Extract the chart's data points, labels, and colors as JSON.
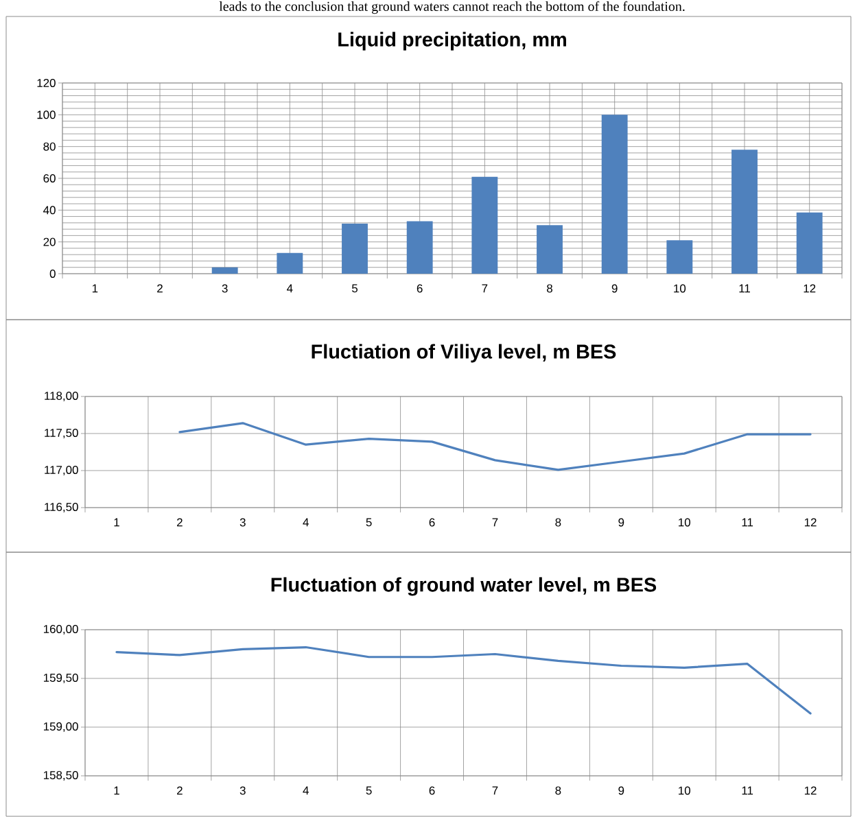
{
  "chart_data": [
    {
      "type": "bar",
      "title": "Liquid precipitation, mm",
      "categories": [
        "1",
        "2",
        "3",
        "4",
        "5",
        "6",
        "7",
        "8",
        "9",
        "10",
        "11",
        "12"
      ],
      "values": [
        0,
        0,
        4,
        13,
        31.5,
        33,
        61,
        30.5,
        100,
        21,
        78,
        38.5
      ],
      "color": "#4f81bd",
      "ylim": [
        0,
        120
      ],
      "yticks": [
        0,
        20,
        40,
        60,
        80,
        100,
        120
      ],
      "grid": true,
      "annotations": [
        "leads to the conclusion that ground waters cannot reach the bottom of the foundation."
      ]
    },
    {
      "type": "line",
      "title": "Fluctiation of Viliya level, m BES",
      "categories": [
        "1",
        "2",
        "3",
        "4",
        "5",
        "6",
        "7",
        "8",
        "9",
        "10",
        "11",
        "12"
      ],
      "values": [
        null,
        117.52,
        117.64,
        117.35,
        117.43,
        117.39,
        117.14,
        117.01,
        117.12,
        117.23,
        117.49,
        117.49
      ],
      "color": "#4f81bd",
      "ylim": [
        116.5,
        118
      ],
      "yticks": [
        {
          "value": 116.5,
          "label": "116,50"
        },
        {
          "value": 117,
          "label": "117,00"
        },
        {
          "value": 117.5,
          "label": "117,50"
        },
        {
          "value": 118,
          "label": "118,00"
        }
      ],
      "grid": true
    },
    {
      "type": "line",
      "title": "Fluctuation of ground water level, m BES",
      "categories": [
        "1",
        "2",
        "3",
        "4",
        "5",
        "6",
        "7",
        "8",
        "9",
        "10",
        "11",
        "12"
      ],
      "values": [
        159.77,
        159.74,
        159.8,
        159.82,
        159.72,
        159.72,
        159.75,
        159.68,
        159.63,
        159.61,
        159.65,
        159.14
      ],
      "color": "#4f81bd",
      "ylim": [
        158.5,
        160
      ],
      "yticks": [
        {
          "value": 158.5,
          "label": "158,50"
        },
        {
          "value": 159,
          "label": "159,00"
        },
        {
          "value": 159.5,
          "label": "159,50"
        },
        {
          "value": 160,
          "label": "160,00"
        }
      ],
      "grid": true
    }
  ]
}
